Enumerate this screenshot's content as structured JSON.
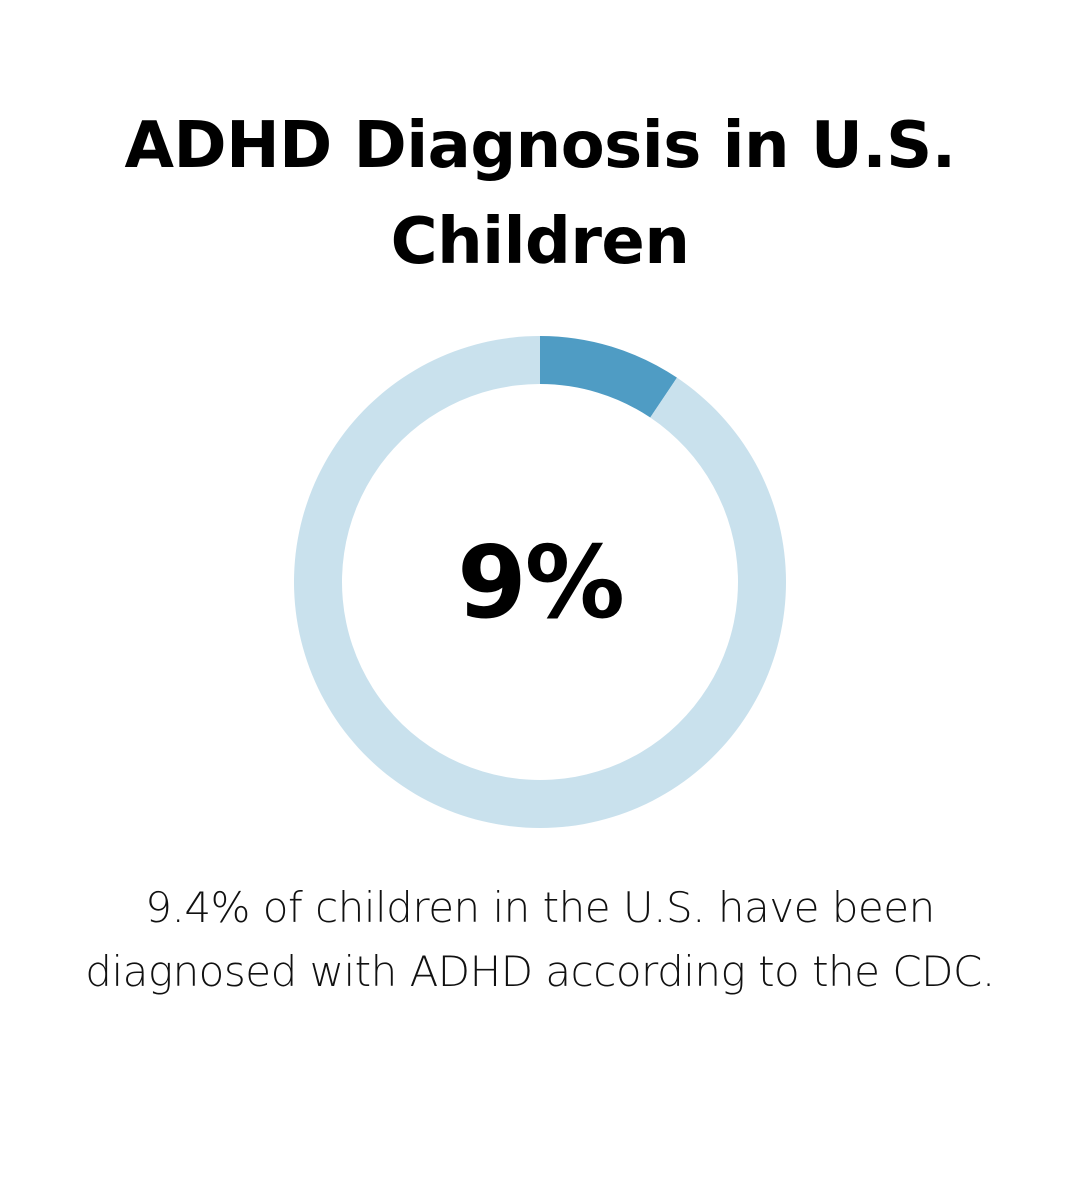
{
  "title": "ADHD Diagnosis in U.S. Children",
  "caption": "9.4% of children in the U.S. have been diagnosed with ADHD according to the CDC.",
  "colors": {
    "highlight": "#4f9cc4",
    "remainder": "#c9e1ed",
    "text": "#000000",
    "background": "#ffffff"
  },
  "chart_data": {
    "type": "pie",
    "style": "donut",
    "center_label": "9%",
    "slices": [
      {
        "label": "",
        "value": 9.4
      },
      {
        "label": "",
        "value": 90.6
      }
    ]
  }
}
